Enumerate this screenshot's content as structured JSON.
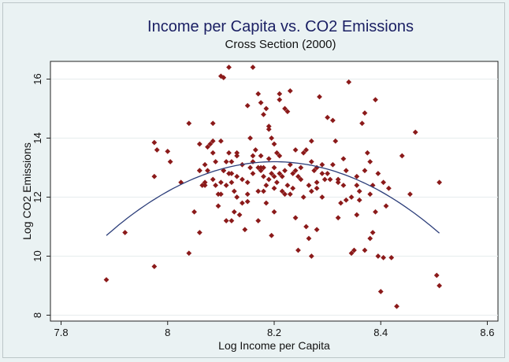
{
  "chart_data": {
    "type": "scatter",
    "title": "Income per Capita vs. CO2 Emissions",
    "subtitle": "Cross Section (2000)",
    "xlabel": "Log Income per Capita",
    "ylabel": "Log CO2 Emissions",
    "xlim": [
      7.78,
      8.62
    ],
    "ylim": [
      7.8,
      16.6
    ],
    "xticks": [
      7.8,
      8,
      8.2,
      8.4,
      8.6
    ],
    "yticks": [
      8,
      10,
      12,
      14,
      16
    ],
    "xtick_labels": [
      "7.8",
      "8",
      "8.2",
      "8.4",
      "8.6"
    ],
    "ytick_labels": [
      "8",
      "10",
      "12",
      "14",
      "16"
    ],
    "grid": "horizontal",
    "colors": {
      "points": "#8b1a1a",
      "curve": "#2c3e7a",
      "plot_bg": "#ffffff",
      "outer_bg": "#eaf2f3",
      "title": "#1a1f63"
    },
    "fit": {
      "type": "quadratic",
      "x_range": [
        7.885,
        8.51
      ],
      "y_at_x_min": 10.7,
      "vertex_x": 8.2,
      "vertex_y": 13.2
    },
    "points": [
      [
        7.885,
        9.2
      ],
      [
        7.92,
        10.8
      ],
      [
        7.975,
        9.65
      ],
      [
        7.975,
        13.85
      ],
      [
        7.975,
        12.7
      ],
      [
        7.98,
        13.6
      ],
      [
        8.0,
        13.55
      ],
      [
        8.005,
        13.2
      ],
      [
        8.025,
        12.5
      ],
      [
        8.04,
        14.5
      ],
      [
        8.04,
        10.1
      ],
      [
        8.05,
        11.5
      ],
      [
        8.06,
        10.8
      ],
      [
        8.06,
        12.9
      ],
      [
        8.06,
        13.8
      ],
      [
        8.065,
        12.4
      ],
      [
        8.07,
        12.5
      ],
      [
        8.07,
        13.1
      ],
      [
        8.075,
        13.7
      ],
      [
        8.08,
        13.8
      ],
      [
        8.085,
        12.6
      ],
      [
        8.085,
        13.5
      ],
      [
        8.09,
        12.4
      ],
      [
        8.095,
        11.7
      ],
      [
        8.1,
        13.9
      ],
      [
        8.1,
        12.1
      ],
      [
        8.105,
        12.9
      ],
      [
        8.11,
        13.2
      ],
      [
        8.115,
        16.4
      ],
      [
        8.12,
        12.5
      ],
      [
        8.125,
        11.5
      ],
      [
        8.13,
        12.0
      ],
      [
        8.13,
        13.5
      ],
      [
        8.14,
        12.6
      ],
      [
        8.14,
        11.8
      ],
      [
        8.145,
        10.9
      ],
      [
        8.15,
        12.1
      ],
      [
        8.155,
        13.0
      ],
      [
        8.16,
        13.4
      ],
      [
        8.17,
        11.2
      ],
      [
        8.175,
        13.0
      ],
      [
        8.18,
        12.2
      ],
      [
        8.185,
        11.8
      ],
      [
        8.19,
        13.3
      ],
      [
        8.195,
        10.7
      ],
      [
        8.2,
        11.5
      ],
      [
        8.1,
        16.1
      ],
      [
        8.105,
        16.05
      ],
      [
        8.15,
        11.85
      ],
      [
        8.085,
        14.5
      ],
      [
        8.15,
        15.1
      ],
      [
        8.16,
        16.4
      ],
      [
        8.17,
        15.5
      ],
      [
        8.175,
        15.2
      ],
      [
        8.18,
        14.8
      ],
      [
        8.185,
        15.0
      ],
      [
        8.19,
        14.4
      ],
      [
        8.195,
        14.0
      ],
      [
        8.2,
        12.7
      ],
      [
        8.2,
        13.8
      ],
      [
        8.205,
        12.5
      ],
      [
        8.21,
        15.5
      ],
      [
        8.21,
        15.3
      ],
      [
        8.215,
        12.7
      ],
      [
        8.22,
        15.0
      ],
      [
        8.225,
        14.9
      ],
      [
        8.23,
        15.6
      ],
      [
        8.23,
        12.1
      ],
      [
        8.235,
        12.8
      ],
      [
        8.24,
        11.3
      ],
      [
        8.245,
        10.2
      ],
      [
        8.25,
        13.0
      ],
      [
        8.255,
        13.5
      ],
      [
        8.26,
        11.0
      ],
      [
        8.265,
        10.6
      ],
      [
        8.27,
        13.2
      ],
      [
        8.275,
        12.9
      ],
      [
        8.28,
        12.5
      ],
      [
        8.285,
        15.4
      ],
      [
        8.29,
        12.0
      ],
      [
        8.295,
        12.6
      ],
      [
        8.3,
        14.7
      ],
      [
        8.31,
        14.6
      ],
      [
        8.315,
        13.9
      ],
      [
        8.32,
        11.3
      ],
      [
        8.325,
        11.8
      ],
      [
        8.33,
        12.4
      ],
      [
        8.335,
        12.9
      ],
      [
        8.34,
        15.9
      ],
      [
        8.345,
        10.1
      ],
      [
        8.35,
        10.2
      ],
      [
        8.355,
        12.7
      ],
      [
        8.36,
        11.9
      ],
      [
        8.365,
        14.5
      ],
      [
        8.37,
        14.85
      ],
      [
        8.375,
        13.5
      ],
      [
        8.38,
        12.1
      ],
      [
        8.385,
        12.4
      ],
      [
        8.39,
        15.3
      ],
      [
        8.395,
        10.0
      ],
      [
        8.4,
        8.8
      ],
      [
        8.405,
        9.95
      ],
      [
        8.41,
        11.7
      ],
      [
        8.415,
        12.3
      ],
      [
        8.42,
        9.95
      ],
      [
        8.43,
        8.3
      ],
      [
        8.44,
        13.4
      ],
      [
        8.455,
        12.1
      ],
      [
        8.465,
        14.2
      ],
      [
        8.505,
        9.35
      ],
      [
        8.51,
        9.0
      ],
      [
        8.51,
        12.5
      ],
      [
        8.24,
        13.6
      ],
      [
        8.21,
        13.4
      ],
      [
        8.2,
        13.0
      ],
      [
        8.215,
        12.2
      ],
      [
        8.225,
        12.4
      ],
      [
        8.2,
        12.3
      ],
      [
        8.19,
        12.6
      ],
      [
        8.185,
        12.4
      ],
      [
        8.18,
        13.0
      ],
      [
        8.175,
        13.4
      ],
      [
        8.17,
        12.2
      ],
      [
        8.165,
        13.6
      ],
      [
        8.16,
        13.2
      ],
      [
        8.155,
        14.0
      ],
      [
        8.14,
        13.1
      ],
      [
        8.13,
        13.4
      ],
      [
        8.12,
        13.2
      ],
      [
        8.115,
        13.5
      ],
      [
        8.105,
        12.9
      ],
      [
        8.095,
        12.1
      ],
      [
        8.25,
        12.6
      ],
      [
        8.26,
        13.6
      ],
      [
        8.27,
        13.9
      ],
      [
        8.28,
        13.0
      ],
      [
        8.29,
        13.1
      ],
      [
        8.3,
        12.8
      ],
      [
        8.31,
        13.1
      ],
      [
        8.32,
        12.5
      ],
      [
        8.33,
        13.3
      ],
      [
        8.27,
        12.2
      ],
      [
        8.24,
        12.9
      ],
      [
        8.23,
        13.1
      ],
      [
        8.22,
        12.9
      ],
      [
        8.205,
        13.5
      ],
      [
        8.195,
        12.8
      ],
      [
        8.18,
        12.7
      ],
      [
        8.175,
        12.9
      ],
      [
        8.19,
        14.3
      ],
      [
        8.13,
        12.7
      ],
      [
        8.12,
        12.8
      ],
      [
        8.11,
        12.4
      ],
      [
        8.1,
        12.5
      ],
      [
        8.09,
        13.2
      ],
      [
        8.075,
        12.9
      ],
      [
        8.355,
        11.4
      ],
      [
        8.37,
        10.2
      ],
      [
        8.38,
        10.6
      ],
      [
        8.385,
        10.8
      ],
      [
        8.39,
        11.5
      ],
      [
        8.36,
        12.2
      ],
      [
        8.345,
        12.0
      ],
      [
        8.335,
        11.9
      ],
      [
        8.32,
        12.6
      ],
      [
        8.305,
        12.6
      ],
      [
        8.29,
        12.8
      ],
      [
        8.28,
        12.3
      ],
      [
        8.265,
        12.4
      ],
      [
        8.255,
        12.0
      ],
      [
        8.245,
        12.7
      ],
      [
        8.235,
        12.3
      ],
      [
        8.22,
        12.1
      ],
      [
        8.21,
        12.8
      ],
      [
        8.06,
        12.9
      ],
      [
        8.07,
        12.4
      ],
      [
        8.085,
        13.9
      ],
      [
        8.12,
        11.2
      ],
      [
        8.11,
        11.2
      ],
      [
        8.115,
        12.8
      ],
      [
        8.125,
        12.2
      ],
      [
        8.135,
        11.4
      ],
      [
        8.15,
        12.5
      ],
      [
        8.16,
        12.8
      ],
      [
        8.27,
        10.0
      ],
      [
        8.28,
        10.9
      ],
      [
        8.395,
        12.8
      ],
      [
        8.405,
        12.5
      ],
      [
        8.355,
        12.4
      ],
      [
        8.37,
        12.9
      ],
      [
        8.38,
        13.2
      ],
      [
        8.17,
        13.0
      ]
    ]
  }
}
